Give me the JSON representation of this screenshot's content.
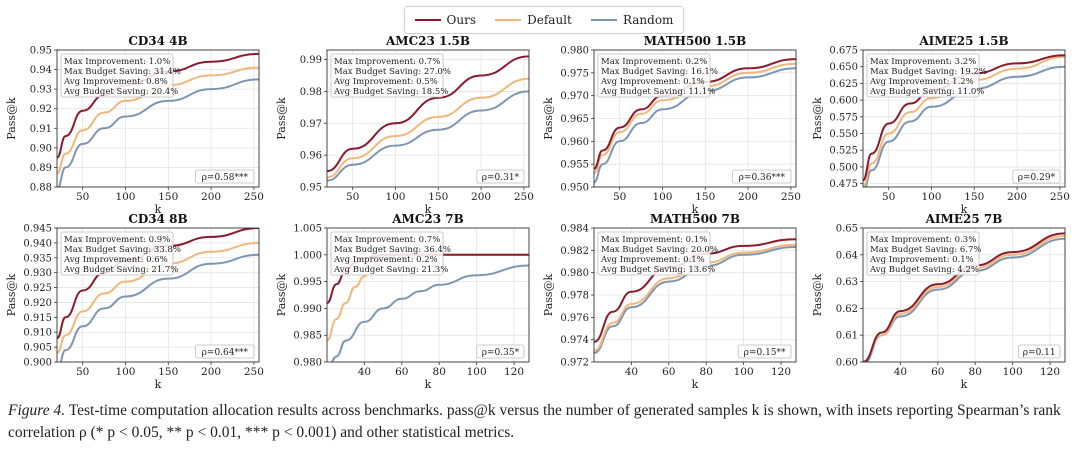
{
  "colors": {
    "ours": "#8b1a2e",
    "default": "#f0b77a",
    "random": "#7d96b4"
  },
  "legend": [
    {
      "name": "Ours",
      "color": "#8b1a2e"
    },
    {
      "name": "Default",
      "color": "#f0b77a"
    },
    {
      "name": "Random",
      "color": "#7d96b4"
    }
  ],
  "caption": {
    "label": "Figure 4.",
    "text": "Test-time computation allocation results across benchmarks. pass@k versus the number of generated samples k is shown, with insets reporting Spearman’s rank correlation ρ (* p < 0.05, ** p < 0.01, *** p < 0.001) and other statistical metrics."
  },
  "chart_data": [
    {
      "type": "line",
      "title": "CD34 4B",
      "xlabel": "k",
      "ylabel": "Pass@k",
      "xlim": [
        20,
        256
      ],
      "ylim": [
        0.88,
        0.95
      ],
      "xticks": [
        50,
        100,
        150,
        200,
        250
      ],
      "yticks": [
        "0.88",
        "0.89",
        "0.90",
        "0.91",
        "0.92",
        "0.93",
        "0.94",
        "0.95"
      ],
      "grid": true,
      "stats": [
        "Max Improvement: 1.0%",
        "Max Budget Saving: 31.4%",
        "Avg Improvement: 0.8%",
        "Avg Budget Saving: 20.4%"
      ],
      "rho": "ρ=0.58***",
      "series": [
        {
          "name": "Ours",
          "x": [
            20,
            30,
            50,
            75,
            100,
            150,
            200,
            256
          ],
          "values": [
            0.895,
            0.906,
            0.919,
            0.927,
            0.932,
            0.939,
            0.944,
            0.948
          ]
        },
        {
          "name": "Default",
          "x": [
            20,
            30,
            50,
            75,
            100,
            150,
            200,
            256
          ],
          "values": [
            0.887,
            0.897,
            0.909,
            0.918,
            0.924,
            0.932,
            0.937,
            0.941
          ]
        },
        {
          "name": "Random",
          "x": [
            20,
            30,
            50,
            75,
            100,
            150,
            200,
            256
          ],
          "values": [
            0.879,
            0.89,
            0.902,
            0.91,
            0.916,
            0.924,
            0.93,
            0.935
          ]
        }
      ]
    },
    {
      "type": "line",
      "title": "AMC23 1.5B",
      "xlabel": "k",
      "ylabel": "Pass@k",
      "xlim": [
        20,
        256
      ],
      "ylim": [
        0.95,
        0.993
      ],
      "xticks": [
        50,
        100,
        150,
        200,
        250
      ],
      "yticks": [
        "0.95",
        "0.96",
        "0.97",
        "0.98",
        "0.99"
      ],
      "grid": true,
      "stats": [
        "Max Improvement: 0.7%",
        "Max Budget Saving: 27.0%",
        "Avg Improvement: 0.5%",
        "Avg Budget Saving: 18.5%"
      ],
      "rho": "ρ=0.31*",
      "series": [
        {
          "name": "Ours",
          "x": [
            20,
            50,
            100,
            150,
            200,
            256
          ],
          "values": [
            0.955,
            0.962,
            0.97,
            0.978,
            0.985,
            0.991
          ]
        },
        {
          "name": "Default",
          "x": [
            20,
            50,
            100,
            150,
            200,
            256
          ],
          "values": [
            0.953,
            0.959,
            0.966,
            0.972,
            0.978,
            0.984
          ]
        },
        {
          "name": "Random",
          "x": [
            20,
            50,
            100,
            150,
            200,
            256
          ],
          "values": [
            0.952,
            0.957,
            0.963,
            0.968,
            0.974,
            0.98
          ]
        }
      ]
    },
    {
      "type": "line",
      "title": "MATH500 1.5B",
      "xlabel": "k",
      "ylabel": "Pass@k",
      "xlim": [
        20,
        256
      ],
      "ylim": [
        0.95,
        0.98
      ],
      "xticks": [
        50,
        100,
        150,
        200,
        250
      ],
      "yticks": [
        "0.950",
        "0.955",
        "0.960",
        "0.965",
        "0.970",
        "0.975",
        "0.980"
      ],
      "grid": true,
      "stats": [
        "Max Improvement: 0.2%",
        "Max Budget Saving: 16.1%",
        "Avg Improvement: 0.1%",
        "Avg Budget Saving: 11.1%"
      ],
      "rho": "ρ=0.36***",
      "series": [
        {
          "name": "Ours",
          "x": [
            20,
            30,
            50,
            75,
            100,
            150,
            200,
            256
          ],
          "values": [
            0.954,
            0.958,
            0.963,
            0.967,
            0.97,
            0.973,
            0.976,
            0.978
          ]
        },
        {
          "name": "Default",
          "x": [
            20,
            30,
            50,
            75,
            100,
            150,
            200,
            256
          ],
          "values": [
            0.953,
            0.957,
            0.962,
            0.966,
            0.969,
            0.972,
            0.975,
            0.977
          ]
        },
        {
          "name": "Random",
          "x": [
            20,
            30,
            50,
            75,
            100,
            150,
            200,
            256
          ],
          "values": [
            0.951,
            0.955,
            0.96,
            0.964,
            0.967,
            0.971,
            0.974,
            0.976
          ]
        }
      ]
    },
    {
      "type": "line",
      "title": "AIME25 1.5B",
      "xlabel": "k",
      "ylabel": "Pass@k",
      "xlim": [
        20,
        256
      ],
      "ylim": [
        0.47,
        0.675
      ],
      "xticks": [
        50,
        100,
        150,
        200,
        250
      ],
      "yticks": [
        "0.475",
        "0.500",
        "0.525",
        "0.550",
        "0.575",
        "0.600",
        "0.625",
        "0.650",
        "0.675"
      ],
      "grid": true,
      "stats": [
        "Max Improvement: 3.2%",
        "Max Budget Saving: 19.2%",
        "Avg Improvement: 1.2%",
        "Avg Budget Saving: 11.0%"
      ],
      "rho": "ρ=0.29*",
      "series": [
        {
          "name": "Ours",
          "x": [
            20,
            30,
            50,
            75,
            100,
            150,
            200,
            256
          ],
          "values": [
            0.48,
            0.52,
            0.565,
            0.595,
            0.615,
            0.64,
            0.655,
            0.667
          ]
        },
        {
          "name": "Default",
          "x": [
            20,
            30,
            50,
            75,
            100,
            150,
            200,
            256
          ],
          "values": [
            0.47,
            0.505,
            0.55,
            0.582,
            0.603,
            0.63,
            0.647,
            0.665
          ]
        },
        {
          "name": "Random",
          "x": [
            20,
            30,
            50,
            75,
            100,
            150,
            200,
            256
          ],
          "values": [
            0.462,
            0.495,
            0.538,
            0.568,
            0.59,
            0.617,
            0.635,
            0.65
          ]
        }
      ]
    },
    {
      "type": "line",
      "title": "CD34 8B",
      "xlabel": "k",
      "ylabel": "Pass@k",
      "xlim": [
        20,
        256
      ],
      "ylim": [
        0.9,
        0.945
      ],
      "xticks": [
        50,
        100,
        150,
        200,
        250
      ],
      "yticks": [
        "0.900",
        "0.905",
        "0.910",
        "0.915",
        "0.920",
        "0.925",
        "0.930",
        "0.935",
        "0.940",
        "0.945"
      ],
      "grid": true,
      "stats": [
        "Max Improvement: 0.9%",
        "Max Budget Saving: 33.8%",
        "Avg Improvement: 0.6%",
        "Avg Budget Saving: 21.7%"
      ],
      "rho": "ρ=0.64***",
      "series": [
        {
          "name": "Ours",
          "x": [
            20,
            30,
            50,
            75,
            100,
            150,
            200,
            256
          ],
          "values": [
            0.908,
            0.915,
            0.924,
            0.93,
            0.934,
            0.939,
            0.942,
            0.945
          ]
        },
        {
          "name": "Default",
          "x": [
            20,
            30,
            50,
            75,
            100,
            150,
            200,
            256
          ],
          "values": [
            0.903,
            0.909,
            0.917,
            0.923,
            0.927,
            0.933,
            0.937,
            0.94
          ]
        },
        {
          "name": "Random",
          "x": [
            20,
            30,
            50,
            75,
            100,
            150,
            200,
            256
          ],
          "values": [
            0.897,
            0.904,
            0.912,
            0.918,
            0.922,
            0.928,
            0.933,
            0.936
          ]
        }
      ]
    },
    {
      "type": "line",
      "title": "AMC23 7B",
      "xlabel": "k",
      "ylabel": "Pass@k",
      "xlim": [
        20,
        128
      ],
      "ylim": [
        0.98,
        1.005
      ],
      "xticks": [
        40,
        60,
        80,
        100,
        120
      ],
      "yticks": [
        "0.980",
        "0.985",
        "0.990",
        "0.995",
        "1.000",
        "1.005"
      ],
      "grid": true,
      "stats": [
        "Max Improvement: 0.7%",
        "Max Budget Saving: 36.4%",
        "Avg Improvement: 0.2%",
        "Avg Budget Saving: 21.3%"
      ],
      "rho": "ρ=0.35*",
      "series": [
        {
          "name": "Ours",
          "x": [
            20,
            25,
            30,
            35,
            40,
            45,
            50,
            60,
            128
          ],
          "values": [
            0.991,
            0.9945,
            0.997,
            0.9985,
            0.9993,
            0.9997,
            1.0,
            1.0,
            1.0
          ]
        },
        {
          "name": "Default",
          "x": [
            20,
            25,
            30,
            35,
            40,
            45,
            50,
            55,
            60,
            128
          ],
          "values": [
            0.984,
            0.988,
            0.991,
            0.994,
            0.996,
            0.998,
            0.9992,
            0.9998,
            1.0,
            1.0
          ]
        },
        {
          "name": "Random",
          "x": [
            20,
            25,
            30,
            40,
            50,
            60,
            70,
            80,
            100,
            128
          ],
          "values": [
            0.9785,
            0.981,
            0.984,
            0.9875,
            0.99,
            0.9918,
            0.9932,
            0.9944,
            0.9962,
            0.998
          ]
        }
      ]
    },
    {
      "type": "line",
      "title": "MATH500 7B",
      "xlabel": "k",
      "ylabel": "Pass@k",
      "xlim": [
        20,
        128
      ],
      "ylim": [
        0.972,
        0.984
      ],
      "xticks": [
        40,
        60,
        80,
        100,
        120
      ],
      "yticks": [
        "0.972",
        "0.974",
        "0.976",
        "0.978",
        "0.980",
        "0.982",
        "0.984"
      ],
      "grid": true,
      "stats": [
        "Max Improvement: 0.1%",
        "Max Budget Saving: 20.0%",
        "Avg Improvement: 0.1%",
        "Avg Budget Saving: 13.6%"
      ],
      "rho": "ρ=0.15**",
      "series": [
        {
          "name": "Ours",
          "x": [
            20,
            30,
            40,
            60,
            80,
            100,
            128
          ],
          "values": [
            0.9738,
            0.9765,
            0.9783,
            0.9805,
            0.9817,
            0.9824,
            0.983
          ]
        },
        {
          "name": "Default",
          "x": [
            20,
            30,
            40,
            60,
            80,
            100,
            128
          ],
          "values": [
            0.973,
            0.9755,
            0.9772,
            0.9795,
            0.9809,
            0.9818,
            0.9825
          ]
        },
        {
          "name": "Random",
          "x": [
            20,
            30,
            40,
            60,
            80,
            100,
            128
          ],
          "values": [
            0.9728,
            0.9752,
            0.9769,
            0.9792,
            0.9806,
            0.9816,
            0.9823
          ]
        }
      ]
    },
    {
      "type": "line",
      "title": "AIME25 7B",
      "xlabel": "k",
      "ylabel": "Pass@k",
      "xlim": [
        20,
        128
      ],
      "ylim": [
        0.6,
        0.65
      ],
      "xticks": [
        40,
        60,
        80,
        100,
        120
      ],
      "yticks": [
        "0.60",
        "0.61",
        "0.62",
        "0.63",
        "0.64",
        "0.65"
      ],
      "grid": true,
      "stats": [
        "Max Improvement: 0.3%",
        "Max Budget Saving: 6.7%",
        "Avg Improvement: 0.1%",
        "Avg Budget Saving: 4.2%"
      ],
      "rho": "ρ=0.11",
      "series": [
        {
          "name": "Ours",
          "x": [
            20,
            30,
            40,
            60,
            80,
            100,
            128
          ],
          "values": [
            0.6,
            0.611,
            0.619,
            0.629,
            0.636,
            0.641,
            0.648
          ]
        },
        {
          "name": "Default",
          "x": [
            20,
            30,
            40,
            60,
            80,
            100,
            128
          ],
          "values": [
            0.6,
            0.61,
            0.618,
            0.628,
            0.635,
            0.64,
            0.647
          ]
        },
        {
          "name": "Random",
          "x": [
            20,
            30,
            40,
            60,
            80,
            100,
            128
          ],
          "values": [
            0.599,
            0.61,
            0.617,
            0.627,
            0.634,
            0.639,
            0.646
          ]
        }
      ]
    }
  ]
}
